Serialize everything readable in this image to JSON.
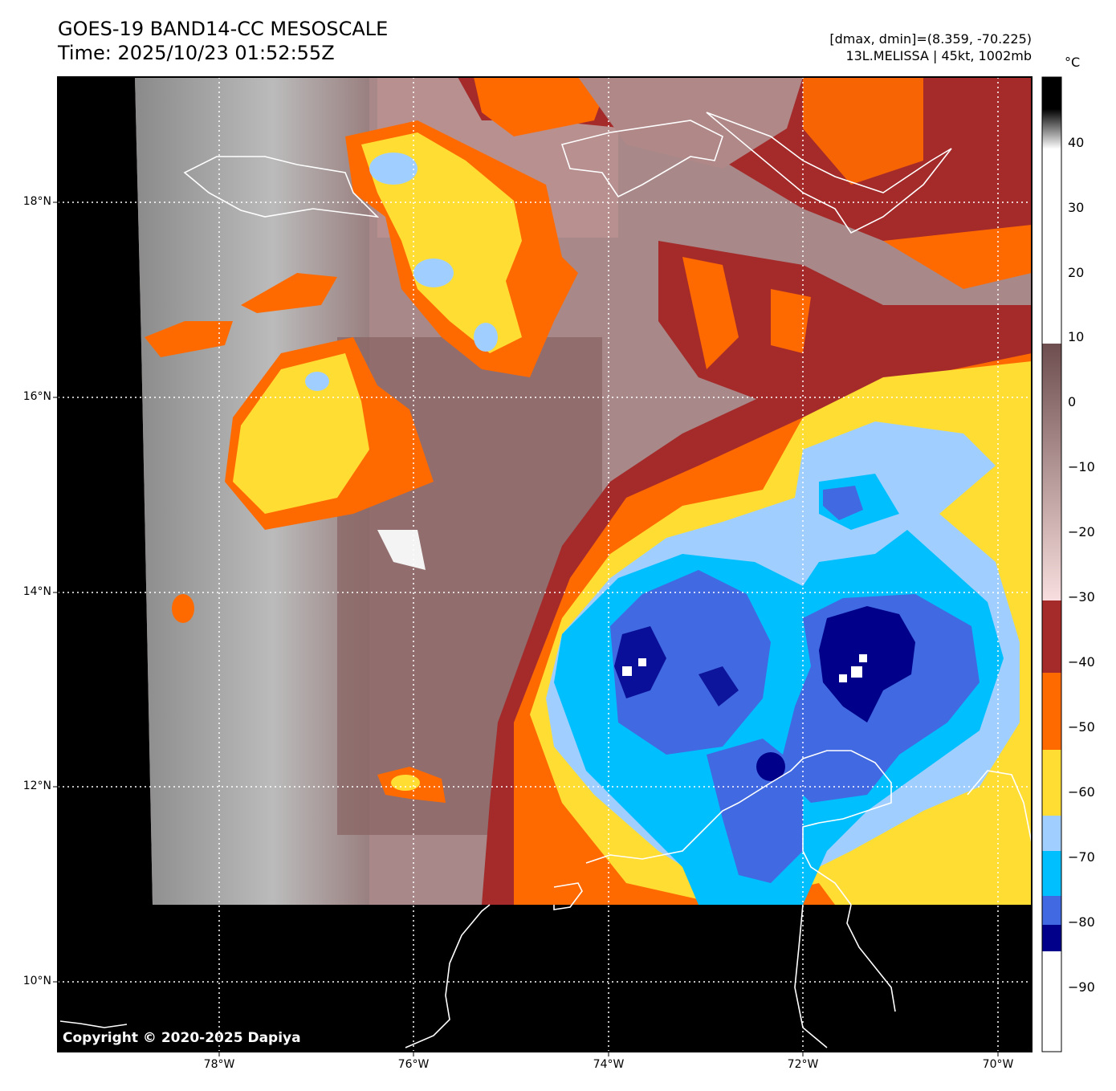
{
  "header": {
    "title": "GOES-19 BAND14-CC MESOSCALE",
    "time": "Time: 2025/10/23 01:52:55Z",
    "range": "[dmax, dmin]=(8.359, -70.225)",
    "storm": "13L.MELISSA | 45kt, 1002mb"
  },
  "map": {
    "lat_labels": [
      "18°N",
      "16°N",
      "14°N",
      "12°N",
      "10°N"
    ],
    "lon_labels": [
      "78°W",
      "76°W",
      "74°W",
      "72°W",
      "70°W"
    ],
    "copyright": "Copyright © 2020-2025 Dapiya"
  },
  "colorbar": {
    "unit": "°C",
    "ticks": [
      "40",
      "30",
      "20",
      "10",
      "0",
      "−10",
      "−20",
      "−30",
      "−40",
      "−50",
      "−60",
      "−70",
      "−80",
      "−90"
    ],
    "colors": {
      "cold_core": "#00008b",
      "very_cold": "#4169e1",
      "cold": "#00bfff",
      "light_blue": "#a0cfff",
      "yellow": "#ffdd33",
      "orange": "#ff6a00",
      "dark_red": "#a52a2a"
    }
  }
}
